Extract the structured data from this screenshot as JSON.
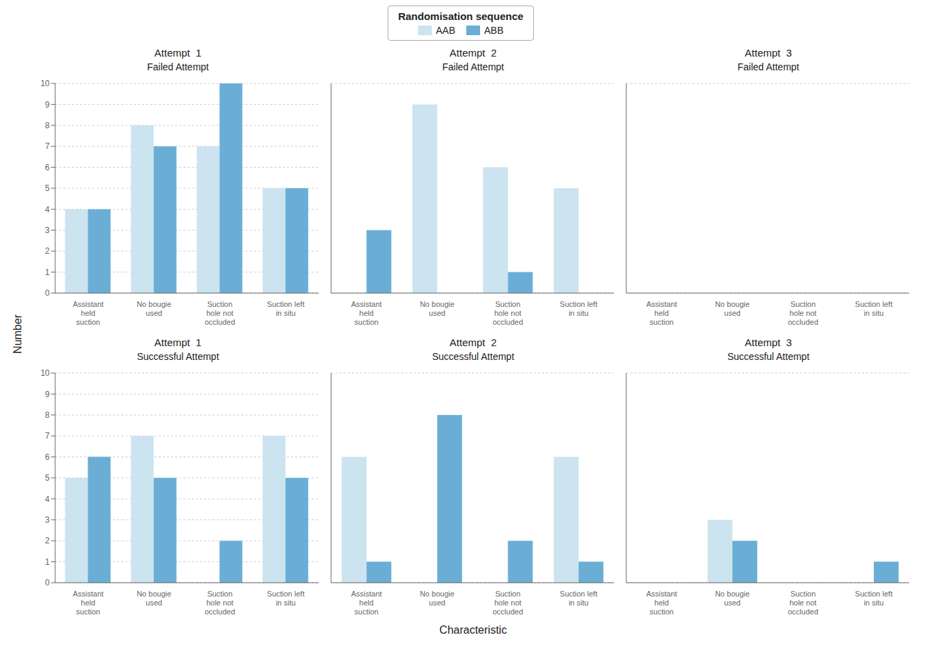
{
  "chart_data": [
    {
      "type": "bar",
      "title": "Attempt  1",
      "subtitle": "Failed Attempt",
      "categories": [
        "Assistant\nheld\nsuction",
        "No bougie\nused",
        "Suction\nhole not\noccluded",
        "Suction left\nin situ"
      ],
      "series": [
        {
          "name": "AAB",
          "color": "#cce3f0",
          "values": [
            4,
            8,
            7,
            5
          ]
        },
        {
          "name": "ABB",
          "color": "#6aaed6",
          "values": [
            4,
            7,
            10,
            5
          ]
        }
      ],
      "ylim": [
        0,
        10
      ],
      "yticks": [
        0,
        1,
        2,
        3,
        4,
        5,
        6,
        7,
        8,
        9,
        10
      ],
      "grid": true
    },
    {
      "type": "bar",
      "title": "Attempt  2",
      "subtitle": "Failed Attempt",
      "categories": [
        "Assistant\nheld\nsuction",
        "No bougie\nused",
        "Suction\nhole not\noccluded",
        "Suction left\nin situ"
      ],
      "series": [
        {
          "name": "AAB",
          "color": "#cce3f0",
          "values": [
            0,
            9,
            6,
            5
          ]
        },
        {
          "name": "ABB",
          "color": "#6aaed6",
          "values": [
            3,
            0,
            1,
            0
          ]
        }
      ],
      "ylim": [
        0,
        10
      ],
      "yticks": [
        0,
        1,
        2,
        3,
        4,
        5,
        6,
        7,
        8,
        9,
        10
      ],
      "grid": true,
      "tick_labels": "x"
    },
    {
      "type": "bar",
      "title": "Attempt  3",
      "subtitle": "Failed Attempt",
      "categories": [
        "Assistant\nheld\nsuction",
        "No bougie\nused",
        "Suction\nhole not\noccluded",
        "Suction left\nin situ"
      ],
      "series": [
        {
          "name": "AAB",
          "color": "#cce3f0",
          "values": [
            0,
            0,
            0,
            0
          ]
        },
        {
          "name": "ABB",
          "color": "#6aaed6",
          "values": [
            0,
            0,
            0,
            0
          ]
        }
      ],
      "ylim": [
        0,
        10
      ],
      "yticks": [
        0,
        1,
        2,
        3,
        4,
        5,
        6,
        7,
        8,
        9,
        10
      ],
      "grid": true,
      "tick_labels": "x"
    },
    {
      "type": "bar",
      "title": "Attempt  1",
      "subtitle": "Successful Attempt",
      "categories": [
        "Assistant\nheld\nsuction",
        "No bougie\nused",
        "Suction\nhole not\noccluded",
        "Suction left\nin situ"
      ],
      "series": [
        {
          "name": "AAB",
          "color": "#cce3f0",
          "values": [
            5,
            7,
            0,
            7
          ]
        },
        {
          "name": "ABB",
          "color": "#6aaed6",
          "values": [
            6,
            5,
            2,
            5
          ]
        }
      ],
      "ylim": [
        0,
        10
      ],
      "yticks": [
        0,
        1,
        2,
        3,
        4,
        5,
        6,
        7,
        8,
        9,
        10
      ],
      "grid": true
    },
    {
      "type": "bar",
      "title": "Attempt  2",
      "subtitle": "Successful Attempt",
      "categories": [
        "Assistant\nheld\nsuction",
        "No bougie\nused",
        "Suction\nhole not\noccluded",
        "Suction left\nin situ"
      ],
      "series": [
        {
          "name": "AAB",
          "color": "#cce3f0",
          "values": [
            6,
            0,
            0,
            6
          ]
        },
        {
          "name": "ABB",
          "color": "#6aaed6",
          "values": [
            1,
            8,
            2,
            1
          ]
        }
      ],
      "ylim": [
        0,
        10
      ],
      "yticks": [
        0,
        1,
        2,
        3,
        4,
        5,
        6,
        7,
        8,
        9,
        10
      ],
      "grid": true,
      "tick_labels": "x"
    },
    {
      "type": "bar",
      "title": "Attempt  3",
      "subtitle": "Successful Attempt",
      "categories": [
        "Assistant\nheld\nsuction",
        "No bougie\nused",
        "Suction\nhole not\noccluded",
        "Suction left\nin situ"
      ],
      "series": [
        {
          "name": "AAB",
          "color": "#cce3f0",
          "values": [
            0,
            3,
            0,
            0
          ]
        },
        {
          "name": "ABB",
          "color": "#6aaed6",
          "values": [
            0,
            2,
            0,
            1
          ]
        }
      ],
      "ylim": [
        0,
        10
      ],
      "yticks": [
        0,
        1,
        2,
        3,
        4,
        5,
        6,
        7,
        8,
        9,
        10
      ],
      "grid": true,
      "tick_labels": "x"
    }
  ],
  "xlabel": "Characteristic",
  "ylabel": "Number",
  "legend_title": "Randomisation sequence",
  "legend": "top"
}
